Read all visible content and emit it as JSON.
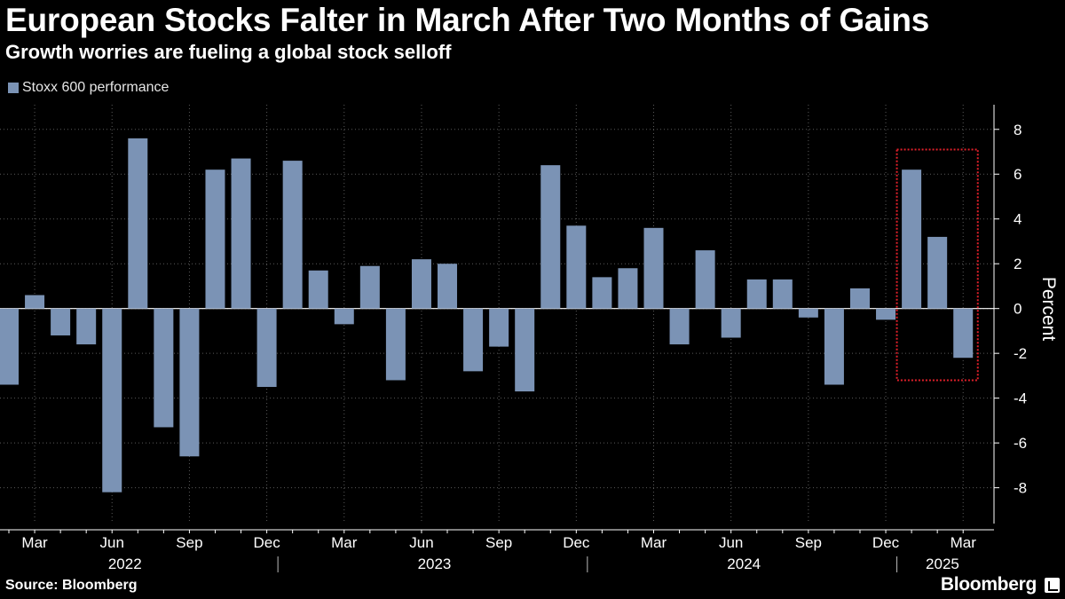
{
  "header": {
    "title": "European Stocks Falter in March After Two Months of Gains",
    "subtitle": "Growth worries are fueling a global stock selloff"
  },
  "footer": {
    "source": "Source: Bloomberg",
    "brand": "Bloomberg"
  },
  "chart_data": {
    "type": "bar",
    "series": [
      {
        "name": "Stoxx 600 performance",
        "color": "#7b93b5",
        "values": [
          -3.4,
          0.6,
          -1.2,
          -1.6,
          -8.2,
          7.6,
          -5.3,
          -6.6,
          6.2,
          6.7,
          -3.5,
          6.6,
          1.7,
          -0.7,
          1.9,
          -3.2,
          2.2,
          2.0,
          -2.8,
          -1.7,
          -3.7,
          6.4,
          3.7,
          1.4,
          1.8,
          3.6,
          -1.6,
          2.6,
          -1.3,
          1.3,
          1.3,
          -0.4,
          -3.4,
          0.9,
          -0.5,
          6.2,
          3.2,
          -2.2
        ]
      }
    ],
    "months": [
      "Feb 2022",
      "Mar 2022",
      "Apr 2022",
      "May 2022",
      "Jun 2022",
      "Jul 2022",
      "Aug 2022",
      "Sep 2022",
      "Oct 2022",
      "Nov 2022",
      "Dec 2022",
      "Jan 2023",
      "Feb 2023",
      "Mar 2023",
      "Apr 2023",
      "May 2023",
      "Jun 2023",
      "Jul 2023",
      "Aug 2023",
      "Sep 2023",
      "Oct 2023",
      "Nov 2023",
      "Dec 2023",
      "Jan 2024",
      "Feb 2024",
      "Mar 2024",
      "Apr 2024",
      "May 2024",
      "Jun 2024",
      "Jul 2024",
      "Aug 2024",
      "Sep 2024",
      "Oct 2024",
      "Nov 2024",
      "Dec 2024",
      "Jan 2025",
      "Feb 2025",
      "Mar 2025"
    ],
    "x_tick_labels": [
      {
        "label": "Mar",
        "month_index": 1
      },
      {
        "label": "Jun",
        "month_index": 4
      },
      {
        "label": "Sep",
        "month_index": 7
      },
      {
        "label": "Dec",
        "month_index": 10
      },
      {
        "label": "Mar",
        "month_index": 13
      },
      {
        "label": "Jun",
        "month_index": 16
      },
      {
        "label": "Sep",
        "month_index": 19
      },
      {
        "label": "Dec",
        "month_index": 22
      },
      {
        "label": "Mar",
        "month_index": 25
      },
      {
        "label": "Jun",
        "month_index": 28
      },
      {
        "label": "Sep",
        "month_index": 31
      },
      {
        "label": "Dec",
        "month_index": 34
      },
      {
        "label": "Mar",
        "month_index": 37
      }
    ],
    "year_labels": [
      "2022",
      "2023",
      "2024",
      "2025"
    ],
    "ylabel": "Percent",
    "yticks": [
      8,
      6,
      4,
      2,
      0,
      -2,
      -4,
      -6,
      -8
    ],
    "ylim": [
      -9.6,
      9.1
    ],
    "grid": true,
    "legend_position": "top-left",
    "highlight": {
      "from_month_index": 35,
      "to_month_index": 37,
      "y_range": [
        -3.2,
        7.1
      ],
      "color": "#e0202a",
      "style": "dotted"
    }
  }
}
